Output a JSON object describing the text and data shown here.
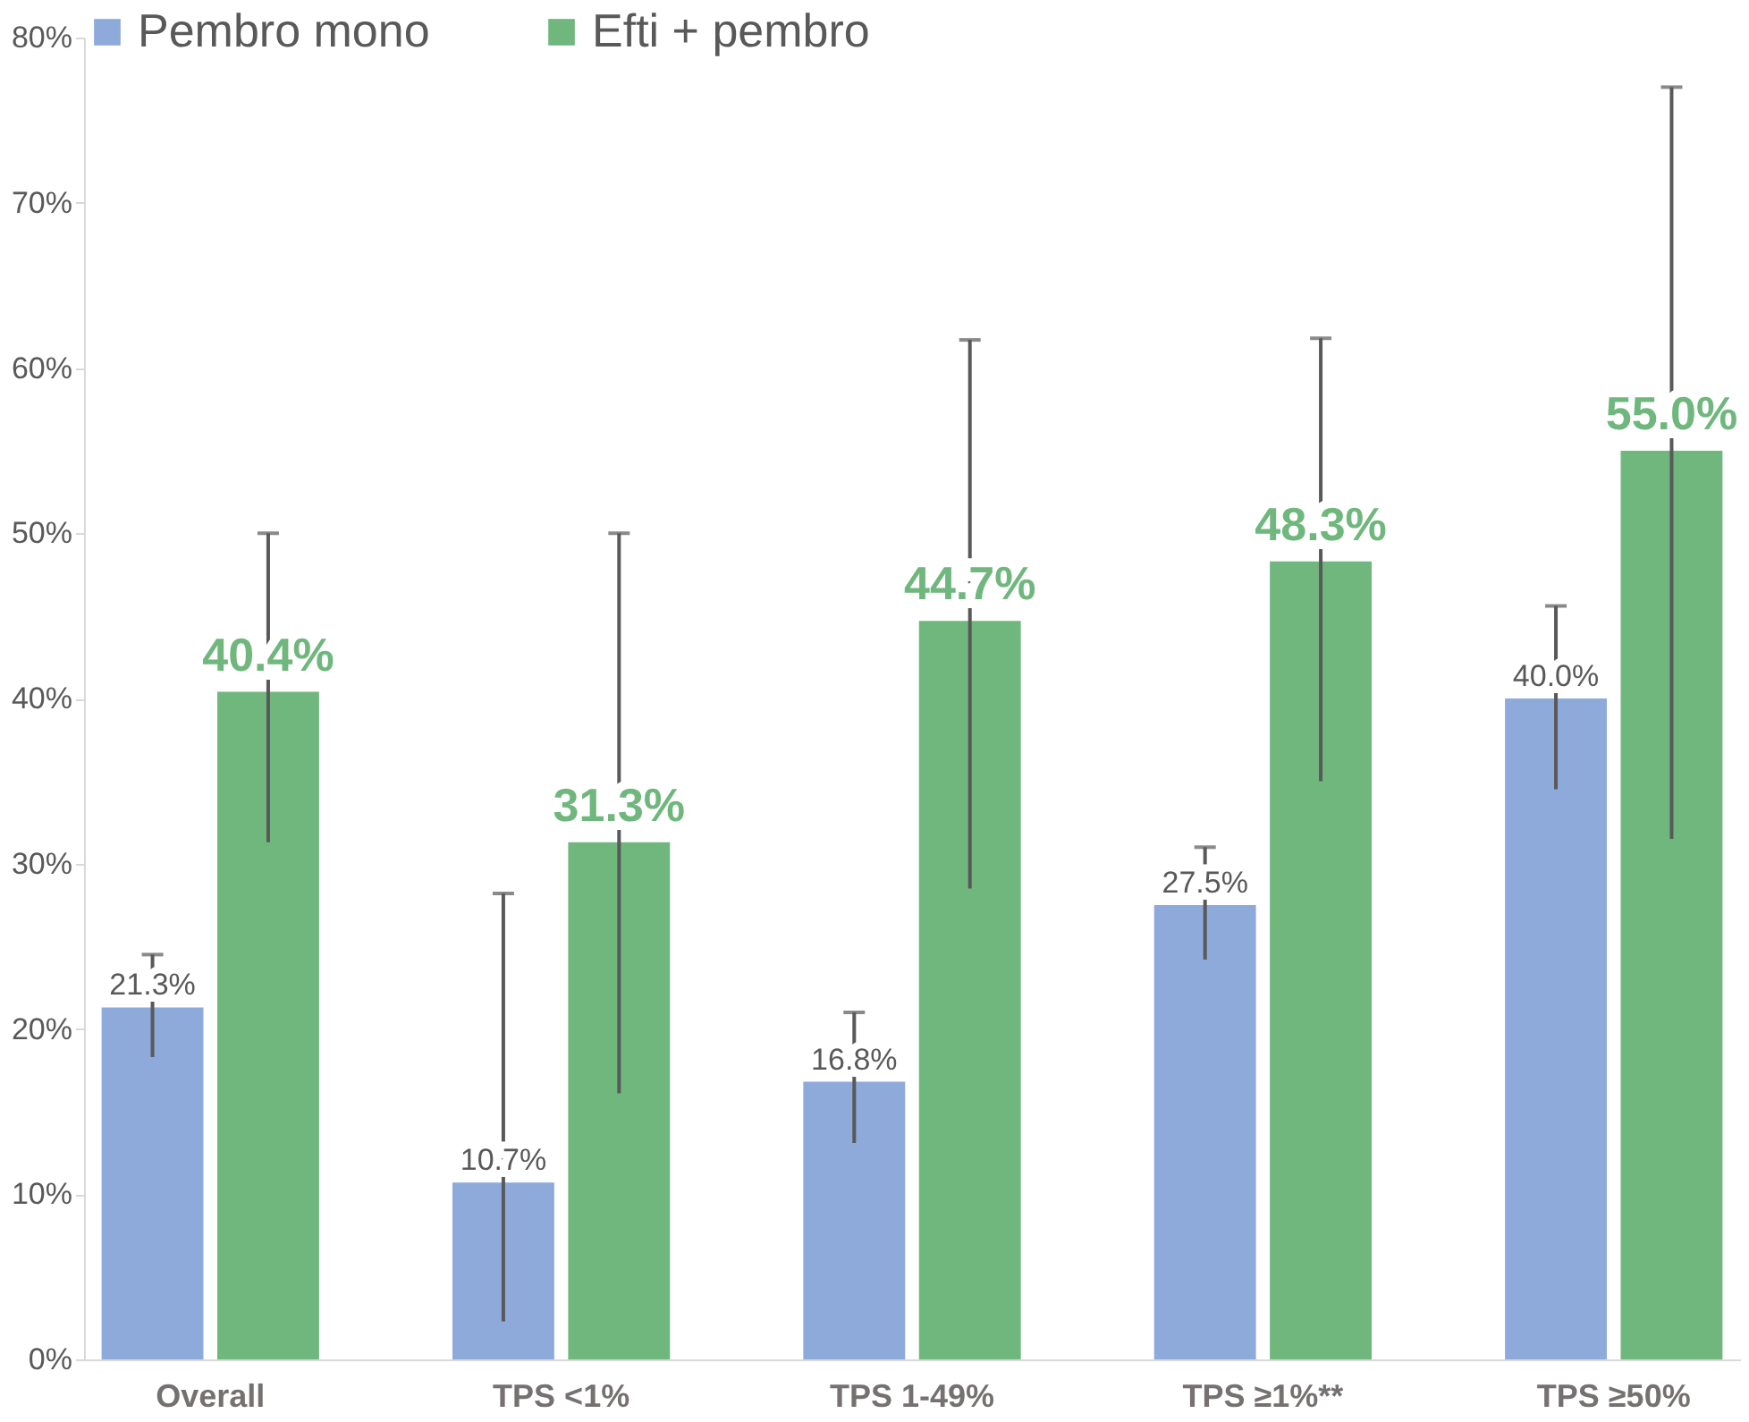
{
  "chart_data": {
    "type": "bar",
    "categories": [
      "Overall",
      "TPS <1%",
      "TPS 1-49%",
      "TPS ≥1%**",
      "TPS ≥50%"
    ],
    "series": [
      {
        "name": "Pembro mono",
        "color": "#8eaadb",
        "values": [
          21.3,
          10.7,
          16.8,
          27.5,
          40.0
        ],
        "value_labels": [
          "21.3%",
          "10.7%",
          "16.8%",
          "27.5%",
          "40.0%"
        ],
        "errors": [
          [
            18.3,
            24.5
          ],
          [
            2.3,
            28.2
          ],
          [
            13.1,
            21.0
          ],
          [
            24.2,
            31.0
          ],
          [
            34.5,
            45.6
          ]
        ]
      },
      {
        "name": "Efti + pembro",
        "color": "#70b77e",
        "values": [
          40.4,
          31.3,
          44.7,
          48.3,
          55.0
        ],
        "value_labels": [
          "40.4%",
          "31.3%",
          "44.7%",
          "48.3%",
          "55.0%"
        ],
        "errors": [
          [
            31.3,
            50.0
          ],
          [
            16.1,
            50.0
          ],
          [
            28.5,
            61.7
          ],
          [
            35.0,
            61.8
          ],
          [
            31.5,
            77.0
          ]
        ]
      }
    ],
    "ylim": [
      0,
      80
    ],
    "yticks": [
      {
        "value": 0,
        "label": "0%"
      },
      {
        "value": 10,
        "label": "10%"
      },
      {
        "value": 20,
        "label": "20%"
      },
      {
        "value": 30,
        "label": "30%"
      },
      {
        "value": 40,
        "label": "40%"
      },
      {
        "value": 50,
        "label": "50%"
      },
      {
        "value": 60,
        "label": "60%"
      },
      {
        "value": 70,
        "label": "70%"
      },
      {
        "value": 80,
        "label": "80%"
      }
    ],
    "grid": false,
    "legend": "top"
  }
}
